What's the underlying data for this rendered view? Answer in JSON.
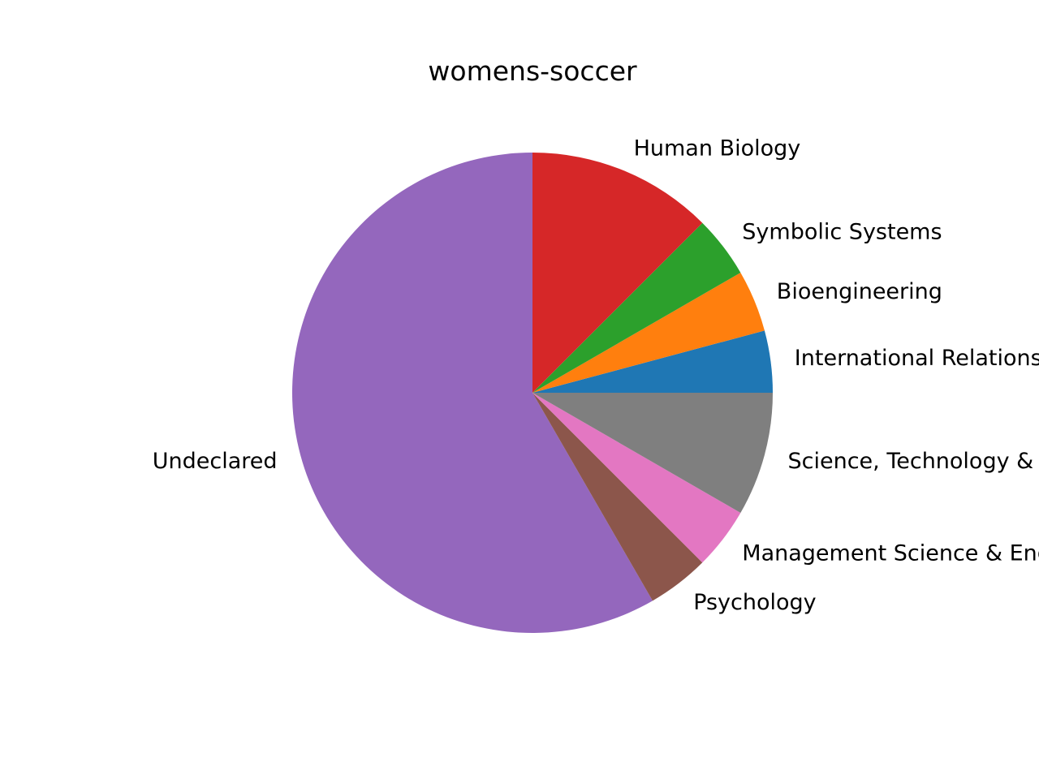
{
  "chart_data": {
    "type": "pie",
    "title": "womens-soccer",
    "start_angle_deg": 0,
    "direction": "counterclockwise",
    "slices": [
      {
        "label": "International Relations",
        "value": 1,
        "color": "#1f77b4"
      },
      {
        "label": "Bioengineering",
        "value": 1,
        "color": "#ff7f0e"
      },
      {
        "label": "Symbolic Systems",
        "value": 1,
        "color": "#2ca02c"
      },
      {
        "label": "Human Biology",
        "value": 3,
        "color": "#d62728"
      },
      {
        "label": "Undeclared",
        "value": 14,
        "color": "#9467bd"
      },
      {
        "label": "Psychology",
        "value": 1,
        "color": "#8c564b"
      },
      {
        "label": "Management Science & Engineering",
        "value": 1,
        "color": "#e377c2"
      },
      {
        "label": "Science, Technology & Society",
        "value": 2,
        "color": "#7f7f7f"
      }
    ]
  }
}
